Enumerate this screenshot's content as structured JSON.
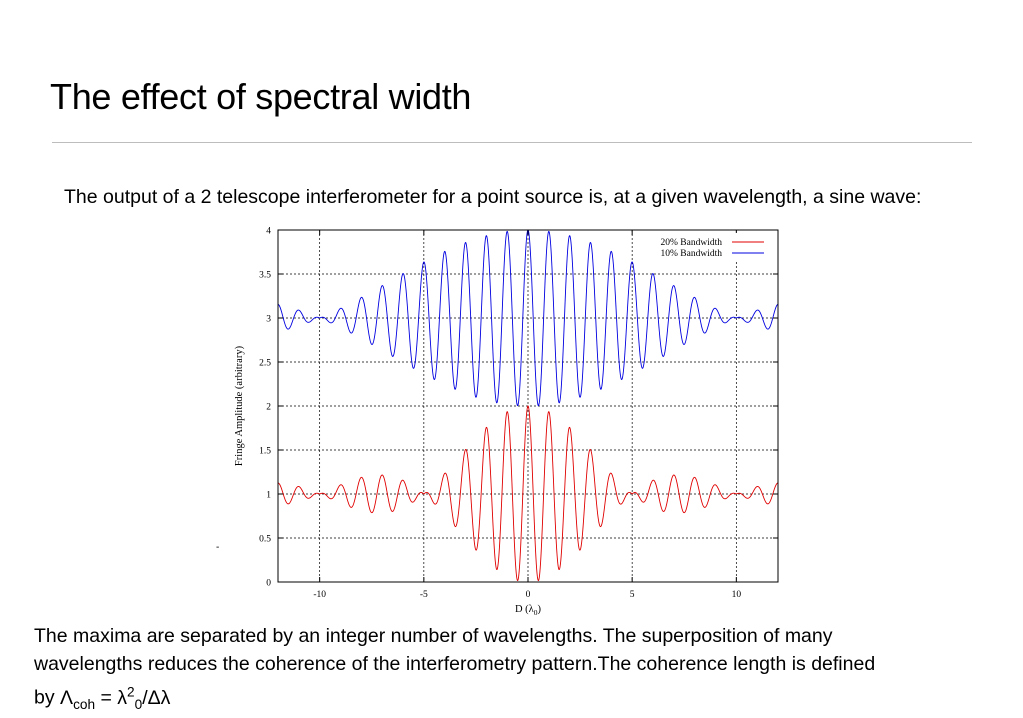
{
  "slide": {
    "title": "The effect of spectral width",
    "intro": "The output of a 2 telescope interferometer for a point source is, at a given wavelength, a sine wave:",
    "outro_text": "The maxima are separated by an integer number of wavelengths. The superposition of many wavelengths reduces the coherence of the interferometry pattern.The coherence length is defined by",
    "formula": {
      "symbol": "Λ",
      "symbol_sub": "coh",
      "equals": " = ",
      "lambda": "λ",
      "lambda_sup": "2",
      "lambda_sub": "0",
      "divide": "/Δλ"
    },
    "stray_mark": "-"
  },
  "chart_data": {
    "type": "line",
    "xlabel": "D (λ",
    "xlabel_sub": "0",
    "xlabel_end": ")",
    "ylabel": "Fringe Amplitude (arbitrary)",
    "xlim": [
      -12,
      12
    ],
    "ylim": [
      0,
      4
    ],
    "xticks": [
      -10,
      -5,
      0,
      5,
      10
    ],
    "xtick_labels": [
      "-10",
      "-5",
      "0",
      "5",
      "10"
    ],
    "yticks": [
      0,
      0.5,
      1,
      1.5,
      2,
      2.5,
      3,
      3.5,
      4
    ],
    "ytick_labels": [
      "0",
      "0.5",
      "1",
      "1.5",
      "2",
      "2.5",
      "3",
      "3.5",
      "4"
    ],
    "grid": true,
    "legend_position": "top-right",
    "series": [
      {
        "name": "20% Bandwidth",
        "color": "#e00000",
        "offset": 1,
        "bandwidth": 0.2,
        "samples": {
          "x": [
            -12,
            -10,
            -8,
            -6,
            -4,
            -3,
            -2,
            -1,
            0,
            1,
            2,
            3,
            4,
            6,
            8,
            10,
            12
          ],
          "envelope": [
            0.08,
            0.06,
            0.12,
            0.08,
            0.38,
            0.59,
            0.76,
            0.94,
            1.0,
            0.94,
            0.76,
            0.59,
            0.38,
            0.08,
            0.12,
            0.06,
            0.08
          ]
        }
      },
      {
        "name": "10% Bandwidth",
        "color": "#0000e0",
        "offset": 3,
        "bandwidth": 0.1,
        "samples": {
          "x": [
            -12,
            -10,
            -8,
            -6,
            -4,
            -2,
            0,
            2,
            4,
            6,
            8,
            10,
            12
          ],
          "envelope": [
            0.15,
            0.04,
            0.2,
            0.55,
            0.76,
            0.94,
            1.0,
            0.94,
            0.76,
            0.55,
            0.2,
            0.04,
            0.15
          ]
        }
      }
    ]
  }
}
